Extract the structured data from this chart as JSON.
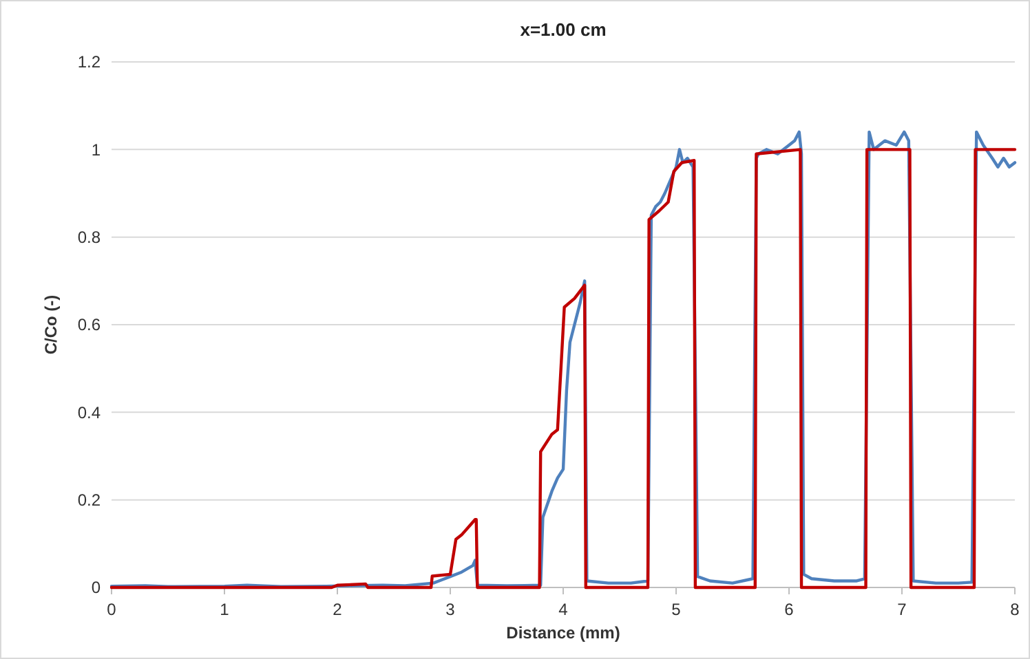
{
  "chart_data": {
    "type": "line",
    "title": "x=1.00 cm",
    "xlabel": "Distance (mm)",
    "ylabel": "C/Co (-)",
    "xlim": [
      0,
      8
    ],
    "xticks": [
      0,
      1,
      2,
      3,
      4,
      5,
      6,
      7,
      8
    ],
    "ylim": [
      0,
      1.2
    ],
    "yticks": [
      0,
      0.2,
      0.4,
      0.6,
      0.8,
      1,
      1.2
    ],
    "grid": "y",
    "marker": "none",
    "line_style": "solid",
    "series": [
      {
        "color": "#4f81bd",
        "x": [
          0,
          0.3,
          0.5,
          1,
          1.2,
          1.5,
          1.9,
          2.1,
          2.4,
          2.6,
          2.85,
          2.9,
          3.0,
          3.1,
          3.2,
          3.22,
          3.24,
          3.5,
          3.8,
          3.82,
          3.86,
          3.9,
          3.95,
          4.0,
          4.03,
          4.06,
          4.1,
          4.15,
          4.19,
          4.21,
          4.4,
          4.6,
          4.75,
          4.78,
          4.82,
          4.86,
          4.9,
          4.95,
          5.0,
          5.03,
          5.06,
          5.1,
          5.15,
          5.17,
          5.19,
          5.3,
          5.5,
          5.68,
          5.71,
          5.73,
          5.8,
          5.9,
          6.0,
          6.05,
          6.09,
          6.11,
          6.13,
          6.2,
          6.4,
          6.6,
          6.67,
          6.71,
          6.75,
          6.85,
          6.95,
          7.02,
          7.06,
          7.1,
          7.3,
          7.5,
          7.62,
          7.66,
          7.72,
          7.8,
          7.85,
          7.9,
          7.95,
          8.0
        ],
        "values": [
          0.003,
          0.004,
          0.002,
          0.003,
          0.005,
          0.002,
          0.003,
          0.004,
          0.005,
          0.004,
          0.01,
          0.015,
          0.025,
          0.035,
          0.05,
          0.062,
          0.005,
          0.004,
          0.005,
          0.16,
          0.19,
          0.22,
          0.25,
          0.27,
          0.45,
          0.56,
          0.6,
          0.65,
          0.7,
          0.015,
          0.01,
          0.01,
          0.015,
          0.85,
          0.87,
          0.88,
          0.9,
          0.93,
          0.96,
          1.0,
          0.97,
          0.98,
          0.96,
          0.5,
          0.025,
          0.015,
          0.01,
          0.02,
          0.98,
          0.99,
          1.0,
          0.99,
          1.01,
          1.02,
          1.04,
          0.99,
          0.03,
          0.02,
          0.015,
          0.015,
          0.02,
          1.04,
          1.0,
          1.02,
          1.01,
          1.04,
          1.02,
          0.015,
          0.01,
          0.01,
          0.012,
          1.04,
          1.01,
          0.98,
          0.96,
          0.98,
          0.96,
          0.97
        ]
      },
      {
        "color": "#c00000",
        "x": [
          0,
          1.95,
          2.0,
          2.25,
          2.27,
          2.83,
          2.84,
          3.0,
          3.05,
          3.1,
          3.22,
          3.23,
          3.24,
          3.79,
          3.8,
          3.85,
          3.9,
          3.95,
          4.01,
          4.1,
          4.19,
          4.2,
          4.75,
          4.76,
          4.85,
          4.93,
          4.98,
          5.05,
          5.16,
          5.17,
          5.7,
          5.71,
          6.1,
          6.11,
          6.68,
          6.69,
          7.07,
          7.08,
          7.64,
          7.65,
          8.0
        ],
        "values": [
          0,
          0,
          0.005,
          0.008,
          0,
          0,
          0.026,
          0.03,
          0.11,
          0.12,
          0.155,
          0.155,
          0,
          0,
          0.31,
          0.33,
          0.35,
          0.36,
          0.64,
          0.66,
          0.69,
          0,
          0,
          0.84,
          0.86,
          0.88,
          0.95,
          0.97,
          0.975,
          0,
          0,
          0.99,
          1.0,
          0,
          0,
          1.0,
          1.0,
          0,
          0,
          1.0,
          1.0
        ]
      }
    ]
  }
}
